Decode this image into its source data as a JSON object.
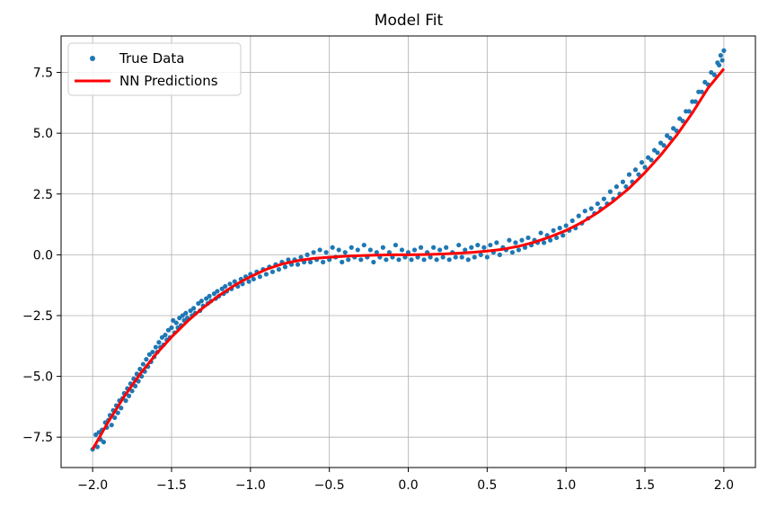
{
  "chart_data": {
    "type": "scatter",
    "title": "Model Fit",
    "xlabel": "",
    "ylabel": "",
    "xlim": [
      -2.2,
      2.2
    ],
    "ylim": [
      -8.75,
      9.0
    ],
    "x_ticks": [
      -2.0,
      -1.5,
      -1.0,
      -0.5,
      0.0,
      0.5,
      1.0,
      1.5,
      2.0
    ],
    "x_tick_labels": [
      "−2.0",
      "−1.5",
      "−1.0",
      "−0.5",
      "0.0",
      "0.5",
      "1.0",
      "1.5",
      "2.0"
    ],
    "y_ticks": [
      -7.5,
      -5.0,
      -2.5,
      0.0,
      2.5,
      5.0,
      7.5
    ],
    "y_tick_labels": [
      "−7.5",
      "−5.0",
      "−2.5",
      "0.0",
      "2.5",
      "5.0",
      "7.5"
    ],
    "grid": true,
    "legend_position": "top-left",
    "series": [
      {
        "name": "True Data",
        "kind": "scatter",
        "color": "#1f77b4",
        "points": [
          [
            -2.0,
            -8.0
          ],
          [
            -1.98,
            -7.4
          ],
          [
            -1.97,
            -7.9
          ],
          [
            -1.96,
            -7.3
          ],
          [
            -1.95,
            -7.6
          ],
          [
            -1.94,
            -7.2
          ],
          [
            -1.93,
            -7.7
          ],
          [
            -1.92,
            -6.9
          ],
          [
            -1.91,
            -7.1
          ],
          [
            -1.9,
            -6.8
          ],
          [
            -1.89,
            -6.6
          ],
          [
            -1.88,
            -7.0
          ],
          [
            -1.87,
            -6.4
          ],
          [
            -1.86,
            -6.7
          ],
          [
            -1.85,
            -6.2
          ],
          [
            -1.84,
            -6.5
          ],
          [
            -1.83,
            -6.0
          ],
          [
            -1.82,
            -6.3
          ],
          [
            -1.81,
            -5.9
          ],
          [
            -1.8,
            -5.7
          ],
          [
            -1.79,
            -6.0
          ],
          [
            -1.78,
            -5.5
          ],
          [
            -1.77,
            -5.8
          ],
          [
            -1.76,
            -5.3
          ],
          [
            -1.75,
            -5.6
          ],
          [
            -1.74,
            -5.1
          ],
          [
            -1.73,
            -5.4
          ],
          [
            -1.72,
            -4.9
          ],
          [
            -1.71,
            -5.2
          ],
          [
            -1.7,
            -4.7
          ],
          [
            -1.69,
            -5.0
          ],
          [
            -1.68,
            -4.5
          ],
          [
            -1.67,
            -4.8
          ],
          [
            -1.66,
            -4.3
          ],
          [
            -1.65,
            -4.6
          ],
          [
            -1.64,
            -4.1
          ],
          [
            -1.63,
            -4.4
          ],
          [
            -1.62,
            -4.0
          ],
          [
            -1.61,
            -4.2
          ],
          [
            -1.6,
            -3.8
          ],
          [
            -1.59,
            -4.0
          ],
          [
            -1.58,
            -3.6
          ],
          [
            -1.57,
            -3.8
          ],
          [
            -1.56,
            -3.4
          ],
          [
            -1.55,
            -3.7
          ],
          [
            -1.54,
            -3.3
          ],
          [
            -1.53,
            -3.5
          ],
          [
            -1.52,
            -3.1
          ],
          [
            -1.51,
            -3.4
          ],
          [
            -1.5,
            -3.0
          ],
          [
            -1.49,
            -2.7
          ],
          [
            -1.48,
            -3.2
          ],
          [
            -1.47,
            -2.8
          ],
          [
            -1.46,
            -3.0
          ],
          [
            -1.45,
            -2.6
          ],
          [
            -1.44,
            -2.9
          ],
          [
            -1.43,
            -2.5
          ],
          [
            -1.42,
            -2.7
          ],
          [
            -1.41,
            -2.4
          ],
          [
            -1.4,
            -2.6
          ],
          [
            -1.38,
            -2.3
          ],
          [
            -1.37,
            -2.5
          ],
          [
            -1.36,
            -2.2
          ],
          [
            -1.35,
            -2.4
          ],
          [
            -1.33,
            -2.0
          ],
          [
            -1.32,
            -2.3
          ],
          [
            -1.31,
            -1.9
          ],
          [
            -1.3,
            -2.1
          ],
          [
            -1.28,
            -1.8
          ],
          [
            -1.27,
            -2.0
          ],
          [
            -1.26,
            -1.7
          ],
          [
            -1.25,
            -1.9
          ],
          [
            -1.23,
            -1.6
          ],
          [
            -1.22,
            -1.8
          ],
          [
            -1.21,
            -1.5
          ],
          [
            -1.2,
            -1.7
          ],
          [
            -1.18,
            -1.4
          ],
          [
            -1.17,
            -1.6
          ],
          [
            -1.16,
            -1.3
          ],
          [
            -1.15,
            -1.5
          ],
          [
            -1.13,
            -1.2
          ],
          [
            -1.12,
            -1.4
          ],
          [
            -1.1,
            -1.1
          ],
          [
            -1.08,
            -1.3
          ],
          [
            -1.06,
            -1.0
          ],
          [
            -1.05,
            -1.2
          ],
          [
            -1.03,
            -0.9
          ],
          [
            -1.01,
            -1.1
          ],
          [
            -1.0,
            -0.8
          ],
          [
            -0.98,
            -1.0
          ],
          [
            -0.96,
            -0.7
          ],
          [
            -0.94,
            -0.9
          ],
          [
            -0.92,
            -0.6
          ],
          [
            -0.9,
            -0.8
          ],
          [
            -0.88,
            -0.5
          ],
          [
            -0.86,
            -0.7
          ],
          [
            -0.84,
            -0.4
          ],
          [
            -0.82,
            -0.6
          ],
          [
            -0.8,
            -0.3
          ],
          [
            -0.78,
            -0.5
          ],
          [
            -0.76,
            -0.2
          ],
          [
            -0.74,
            -0.4
          ],
          [
            -0.72,
            -0.2
          ],
          [
            -0.7,
            -0.4
          ],
          [
            -0.68,
            -0.1
          ],
          [
            -0.66,
            -0.3
          ],
          [
            -0.64,
            0.0
          ],
          [
            -0.62,
            -0.3
          ],
          [
            -0.6,
            0.1
          ],
          [
            -0.58,
            -0.2
          ],
          [
            -0.56,
            0.2
          ],
          [
            -0.54,
            -0.3
          ],
          [
            -0.52,
            0.1
          ],
          [
            -0.5,
            -0.2
          ],
          [
            -0.48,
            0.3
          ],
          [
            -0.46,
            -0.1
          ],
          [
            -0.44,
            0.2
          ],
          [
            -0.42,
            -0.3
          ],
          [
            -0.4,
            0.1
          ],
          [
            -0.38,
            -0.2
          ],
          [
            -0.36,
            0.3
          ],
          [
            -0.34,
            -0.1
          ],
          [
            -0.32,
            0.2
          ],
          [
            -0.3,
            -0.2
          ],
          [
            -0.28,
            0.4
          ],
          [
            -0.26,
            -0.1
          ],
          [
            -0.24,
            0.2
          ],
          [
            -0.22,
            -0.3
          ],
          [
            -0.2,
            0.1
          ],
          [
            -0.18,
            -0.1
          ],
          [
            -0.16,
            0.3
          ],
          [
            -0.14,
            -0.2
          ],
          [
            -0.12,
            0.1
          ],
          [
            -0.1,
            -0.1
          ],
          [
            -0.08,
            0.4
          ],
          [
            -0.06,
            -0.2
          ],
          [
            -0.04,
            0.2
          ],
          [
            -0.02,
            -0.1
          ],
          [
            0.0,
            0.1
          ],
          [
            0.02,
            -0.2
          ],
          [
            0.04,
            0.2
          ],
          [
            0.06,
            -0.1
          ],
          [
            0.08,
            0.3
          ],
          [
            0.1,
            -0.2
          ],
          [
            0.12,
            0.1
          ],
          [
            0.14,
            -0.1
          ],
          [
            0.16,
            0.3
          ],
          [
            0.18,
            -0.2
          ],
          [
            0.2,
            0.2
          ],
          [
            0.22,
            -0.1
          ],
          [
            0.24,
            0.3
          ],
          [
            0.26,
            -0.2
          ],
          [
            0.28,
            0.1
          ],
          [
            0.3,
            -0.1
          ],
          [
            0.32,
            0.4
          ],
          [
            0.34,
            -0.1
          ],
          [
            0.36,
            0.2
          ],
          [
            0.38,
            -0.2
          ],
          [
            0.4,
            0.3
          ],
          [
            0.42,
            -0.1
          ],
          [
            0.44,
            0.4
          ],
          [
            0.46,
            0.0
          ],
          [
            0.48,
            0.3
          ],
          [
            0.5,
            -0.1
          ],
          [
            0.52,
            0.4
          ],
          [
            0.54,
            0.1
          ],
          [
            0.56,
            0.5
          ],
          [
            0.58,
            0.0
          ],
          [
            0.6,
            0.3
          ],
          [
            0.62,
            0.2
          ],
          [
            0.64,
            0.6
          ],
          [
            0.66,
            0.1
          ],
          [
            0.68,
            0.5
          ],
          [
            0.7,
            0.2
          ],
          [
            0.72,
            0.6
          ],
          [
            0.74,
            0.3
          ],
          [
            0.76,
            0.7
          ],
          [
            0.78,
            0.4
          ],
          [
            0.8,
            0.6
          ],
          [
            0.82,
            0.5
          ],
          [
            0.84,
            0.9
          ],
          [
            0.86,
            0.5
          ],
          [
            0.88,
            0.8
          ],
          [
            0.9,
            0.6
          ],
          [
            0.92,
            1.0
          ],
          [
            0.94,
            0.7
          ],
          [
            0.96,
            1.1
          ],
          [
            0.98,
            0.8
          ],
          [
            1.0,
            1.2
          ],
          [
            1.02,
            1.0
          ],
          [
            1.04,
            1.4
          ],
          [
            1.06,
            1.1
          ],
          [
            1.08,
            1.6
          ],
          [
            1.1,
            1.3
          ],
          [
            1.12,
            1.8
          ],
          [
            1.14,
            1.5
          ],
          [
            1.16,
            1.9
          ],
          [
            1.18,
            1.7
          ],
          [
            1.2,
            2.1
          ],
          [
            1.22,
            1.9
          ],
          [
            1.24,
            2.3
          ],
          [
            1.26,
            2.1
          ],
          [
            1.28,
            2.6
          ],
          [
            1.3,
            2.3
          ],
          [
            1.32,
            2.8
          ],
          [
            1.34,
            2.5
          ],
          [
            1.36,
            3.0
          ],
          [
            1.38,
            2.8
          ],
          [
            1.4,
            3.3
          ],
          [
            1.42,
            3.0
          ],
          [
            1.44,
            3.5
          ],
          [
            1.46,
            3.3
          ],
          [
            1.48,
            3.8
          ],
          [
            1.5,
            3.6
          ],
          [
            1.52,
            4.0
          ],
          [
            1.54,
            3.9
          ],
          [
            1.56,
            4.3
          ],
          [
            1.58,
            4.2
          ],
          [
            1.6,
            4.6
          ],
          [
            1.62,
            4.5
          ],
          [
            1.64,
            4.9
          ],
          [
            1.66,
            4.8
          ],
          [
            1.68,
            5.2
          ],
          [
            1.7,
            5.1
          ],
          [
            1.72,
            5.6
          ],
          [
            1.74,
            5.5
          ],
          [
            1.76,
            5.9
          ],
          [
            1.78,
            5.9
          ],
          [
            1.8,
            6.3
          ],
          [
            1.82,
            6.3
          ],
          [
            1.84,
            6.7
          ],
          [
            1.86,
            6.7
          ],
          [
            1.88,
            7.1
          ],
          [
            1.9,
            7.0
          ],
          [
            1.92,
            7.5
          ],
          [
            1.94,
            7.4
          ],
          [
            1.96,
            7.9
          ],
          [
            1.97,
            7.8
          ],
          [
            1.98,
            8.2
          ],
          [
            1.99,
            8.0
          ],
          [
            2.0,
            8.4
          ]
        ]
      },
      {
        "name": "NN Predictions",
        "kind": "line",
        "color": "#ff0000",
        "points": [
          [
            -2.0,
            -8.0
          ],
          [
            -1.9,
            -6.86
          ],
          [
            -1.8,
            -5.83
          ],
          [
            -1.7,
            -4.91
          ],
          [
            -1.6,
            -4.1
          ],
          [
            -1.5,
            -3.38
          ],
          [
            -1.4,
            -2.74
          ],
          [
            -1.3,
            -2.18
          ],
          [
            -1.2,
            -1.68
          ],
          [
            -1.1,
            -1.25
          ],
          [
            -1.0,
            -0.9
          ],
          [
            -0.9,
            -0.6
          ],
          [
            -0.8,
            -0.38
          ],
          [
            -0.7,
            -0.24
          ],
          [
            -0.6,
            -0.15
          ],
          [
            -0.5,
            -0.1
          ],
          [
            -0.4,
            -0.06
          ],
          [
            -0.3,
            -0.03
          ],
          [
            -0.2,
            -0.01
          ],
          [
            -0.1,
            0.0
          ],
          [
            0.0,
            0.0
          ],
          [
            0.1,
            0.01
          ],
          [
            0.2,
            0.03
          ],
          [
            0.3,
            0.06
          ],
          [
            0.4,
            0.1
          ],
          [
            0.5,
            0.15
          ],
          [
            0.6,
            0.23
          ],
          [
            0.7,
            0.35
          ],
          [
            0.8,
            0.52
          ],
          [
            0.9,
            0.74
          ],
          [
            1.0,
            1.0
          ],
          [
            1.1,
            1.33
          ],
          [
            1.2,
            1.73
          ],
          [
            1.3,
            2.2
          ],
          [
            1.4,
            2.74
          ],
          [
            1.5,
            3.38
          ],
          [
            1.6,
            4.1
          ],
          [
            1.7,
            4.91
          ],
          [
            1.8,
            5.83
          ],
          [
            1.9,
            6.86
          ],
          [
            2.0,
            7.65
          ]
        ]
      }
    ]
  }
}
